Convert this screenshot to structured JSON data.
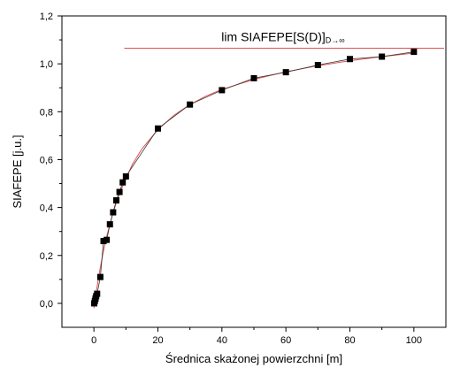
{
  "chart_data": {
    "type": "scatter",
    "xlabel": "Średnica skażonej powierzchni [m]",
    "ylabel": "SIAFEPE [j.u.]",
    "xlim": [
      -10,
      110
    ],
    "ylim": [
      -0.1,
      1.2
    ],
    "x_ticks": [
      0,
      20,
      40,
      60,
      80,
      100
    ],
    "x_tick_labels": [
      "0",
      "20",
      "40",
      "60",
      "80",
      "100"
    ],
    "y_ticks": [
      0.0,
      0.2,
      0.4,
      0.6,
      0.8,
      1.0,
      1.2
    ],
    "y_tick_labels": [
      "0,0",
      "0,2",
      "0,4",
      "0,6",
      "0,8",
      "1,0",
      "1,2"
    ],
    "grid": false,
    "limit_line": {
      "y": 1.065,
      "x_start": 9.5,
      "label": "lim SIAFEPE[S(D)]",
      "subscript": "D→∞",
      "color": "#e05050"
    },
    "series": [
      {
        "type": "scatter",
        "color": "#000000",
        "x": [
          0.1,
          0.3,
          0.5,
          0.7,
          1.0,
          2.0,
          3.0,
          4.0,
          5.0,
          6.0,
          7.0,
          8.0,
          9.0,
          10.0,
          20,
          30,
          40,
          50,
          60,
          70,
          80,
          90,
          100
        ],
        "y": [
          0.0,
          0.01,
          0.02,
          0.03,
          0.04,
          0.11,
          0.26,
          0.265,
          0.33,
          0.38,
          0.43,
          0.465,
          0.505,
          0.53,
          0.73,
          0.83,
          0.89,
          0.94,
          0.965,
          0.995,
          1.02,
          1.03,
          1.05
        ]
      },
      {
        "type": "fit-line",
        "color": "#e05050",
        "x": [
          0,
          0.5,
          1,
          2,
          3,
          4,
          5,
          6,
          7,
          8,
          9,
          10,
          12,
          15,
          20,
          25,
          30,
          35,
          40,
          50,
          60,
          70,
          80,
          90,
          100
        ],
        "y": [
          -0.02,
          0.03,
          0.07,
          0.15,
          0.22,
          0.28,
          0.33,
          0.38,
          0.42,
          0.46,
          0.49,
          0.52,
          0.58,
          0.645,
          0.725,
          0.785,
          0.83,
          0.865,
          0.893,
          0.935,
          0.967,
          0.992,
          1.013,
          1.03,
          1.045
        ]
      }
    ]
  }
}
